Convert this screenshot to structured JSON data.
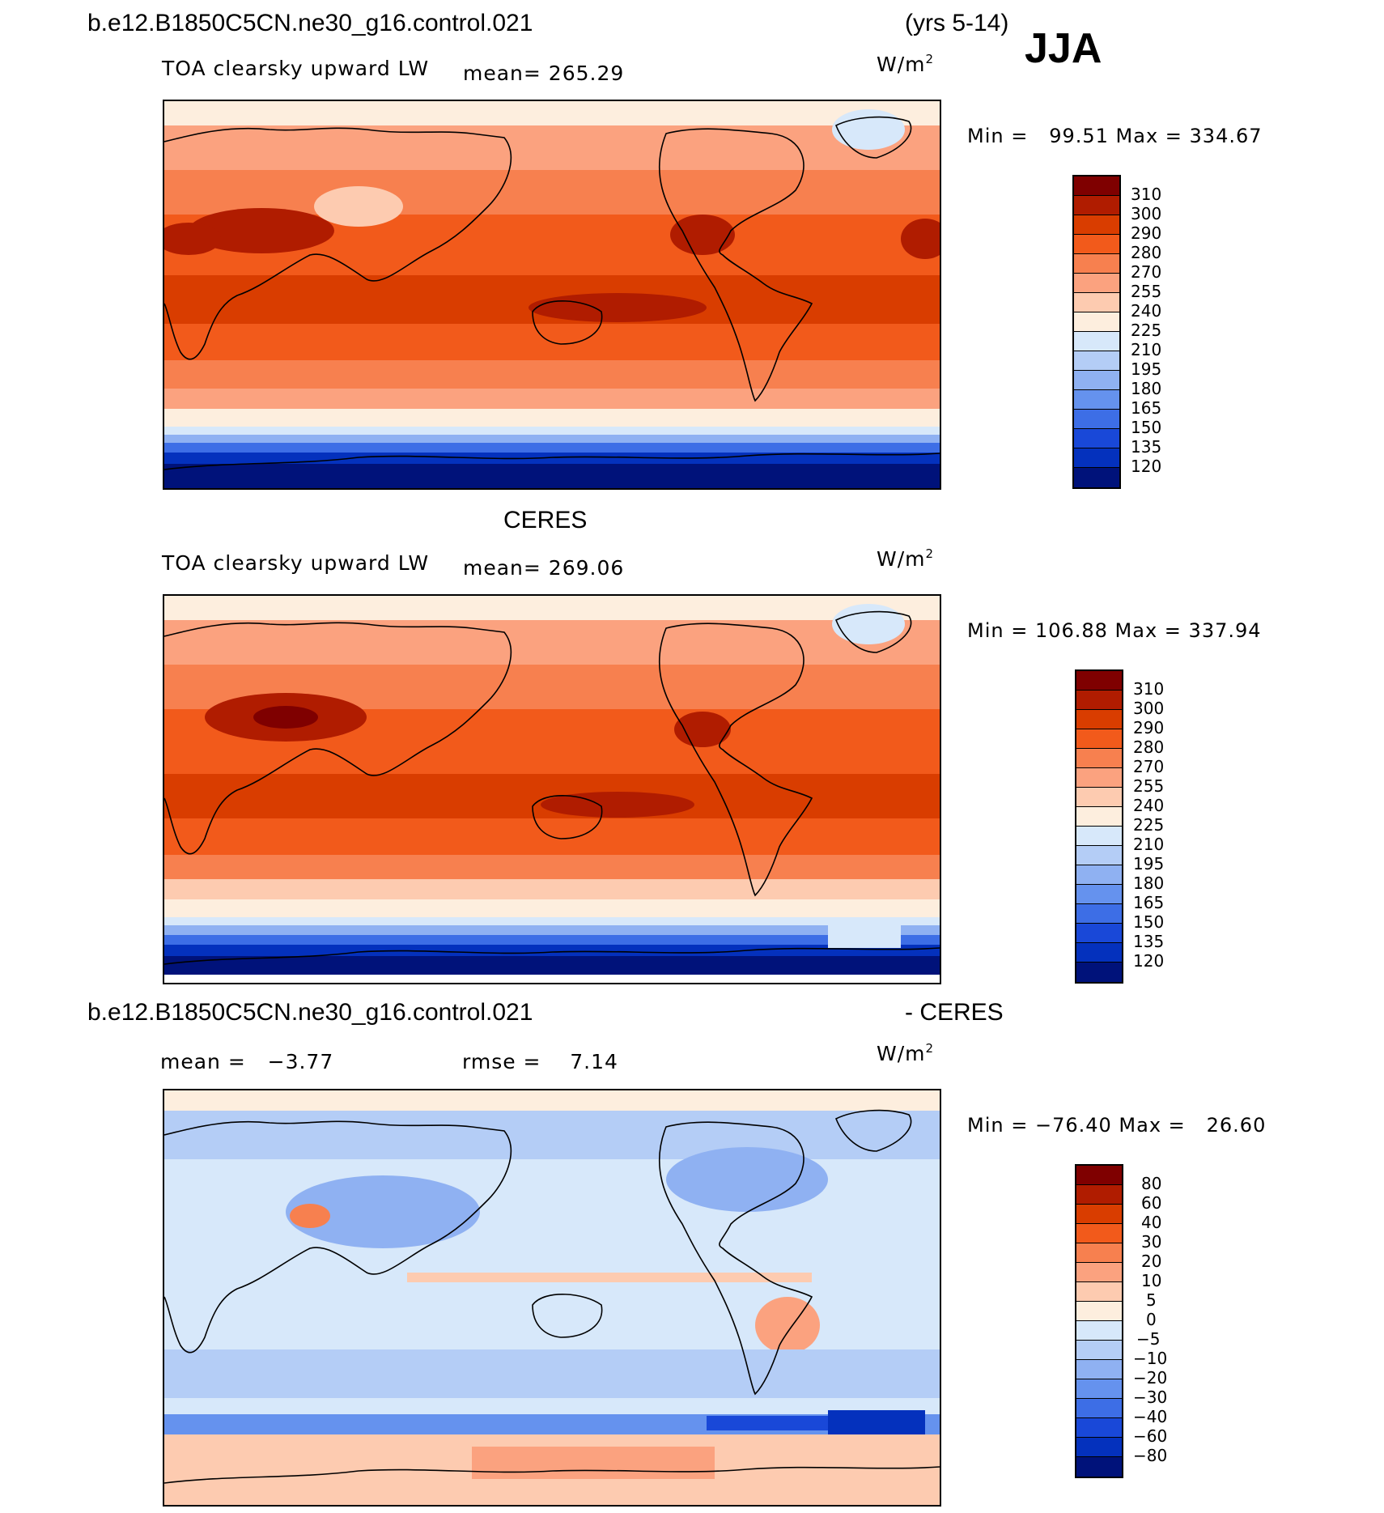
{
  "header": {
    "case_name": "b.e12.B1850C5CN.ne30_g16.control.021",
    "years": "(yrs 5-14)",
    "season": "JJA"
  },
  "panels": [
    {
      "id": "model",
      "variable": "TOA clearsky upward LW",
      "mean_text": "mean= 265.29",
      "units": "W/m",
      "units_exp": "2",
      "minmax_text": "Min =   99.51 Max = 334.67",
      "legend_levels": [
        "310",
        "300",
        "290",
        "280",
        "270",
        "255",
        "240",
        "225",
        "210",
        "195",
        "180",
        "165",
        "150",
        "135",
        "120"
      ]
    },
    {
      "id": "obs",
      "title": "CERES",
      "variable": "TOA clearsky upward LW",
      "mean_text": "mean= 269.06",
      "units": "W/m",
      "units_exp": "2",
      "minmax_text": "Min = 106.88 Max = 337.94",
      "legend_levels": [
        "310",
        "300",
        "290",
        "280",
        "270",
        "255",
        "240",
        "225",
        "210",
        "195",
        "180",
        "165",
        "150",
        "135",
        "120"
      ]
    },
    {
      "id": "diff",
      "title_left": "b.e12.B1850C5CN.ne30_g16.control.021",
      "title_right": "- CERES",
      "mean_text": "mean =   −3.77",
      "rmse_text": "rmse =    7.14",
      "units": "W/m",
      "units_exp": "2",
      "minmax_text": "Min = −76.40 Max =   26.60",
      "legend_levels": [
        "80",
        "60",
        "40",
        "30",
        "20",
        "10",
        "5",
        "0",
        "−5",
        "−10",
        "−20",
        "−30",
        "−40",
        "−60",
        "−80"
      ]
    }
  ],
  "colors": {
    "lw_scale": [
      "#7f0000",
      "#b01c00",
      "#d93d00",
      "#f25a1b",
      "#f7804f",
      "#fba27f",
      "#fdcbb0",
      "#fdeede",
      "#d7e8fa",
      "#b4cdf6",
      "#8fb1f2",
      "#6592ee",
      "#3d6ee6",
      "#1948d8",
      "#0431bd",
      "#00127a"
    ],
    "diff_scale": [
      "#7f0000",
      "#b01c00",
      "#d93d00",
      "#f25a1b",
      "#f7804f",
      "#fba27f",
      "#fdcbb0",
      "#fdeede",
      "#d7e8fa",
      "#b4cdf6",
      "#8fb1f2",
      "#6592ee",
      "#3d6ee6",
      "#1948d8",
      "#0431bd",
      "#00127a"
    ]
  }
}
